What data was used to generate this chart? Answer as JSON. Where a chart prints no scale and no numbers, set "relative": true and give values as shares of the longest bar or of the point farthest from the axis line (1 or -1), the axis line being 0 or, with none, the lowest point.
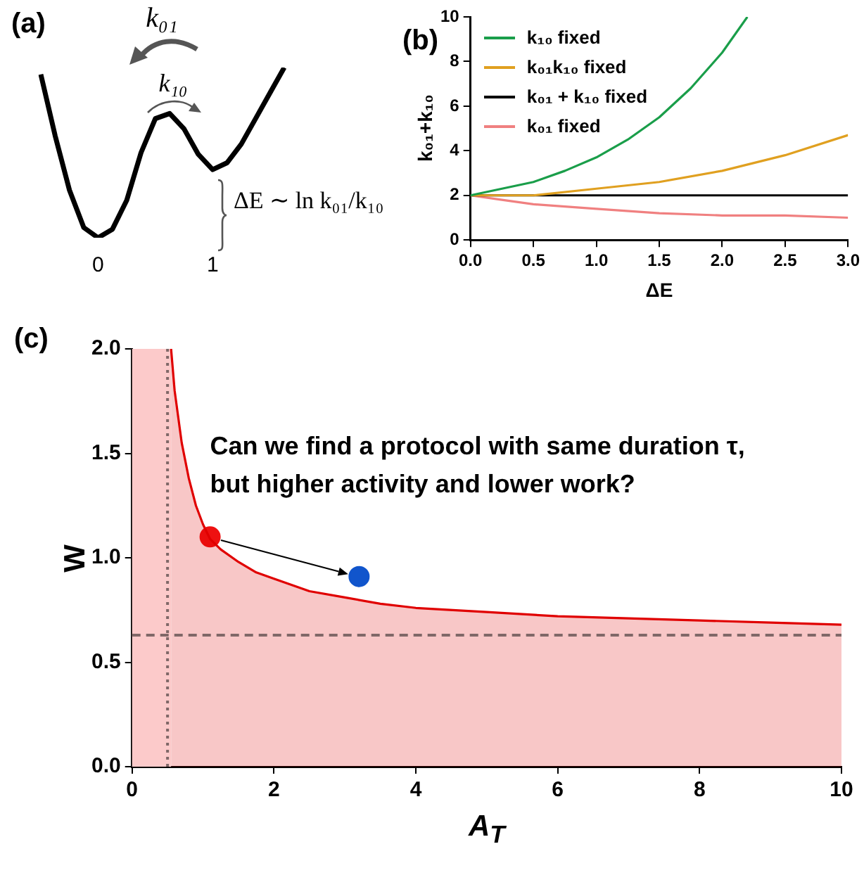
{
  "chart_data": [
    {
      "type": "line",
      "title": "(a)",
      "relative": true,
      "annotations": [
        "k₀₁",
        "k₁₀",
        "ΔE ∼ ln k₀₁/k₁₀"
      ],
      "categories": [
        null,
        null,
        null,
        null,
        "0",
        null,
        null,
        null,
        null,
        null,
        null,
        null,
        "1",
        null,
        null,
        null,
        null,
        null
      ],
      "series": [
        {
          "color": "#000000",
          "values": [
            0.96,
            0.6,
            0.28,
            0.06,
            0,
            0.05,
            0.22,
            0.5,
            0.7,
            0.73,
            0.64,
            0.49,
            0.4,
            0.44,
            0.55,
            0.7,
            0.85,
            1
          ]
        }
      ]
    },
    {
      "type": "line",
      "title": "(b)",
      "xlabel": "ΔE",
      "ylabel": "k₀₁+k₁₀",
      "xlim": [
        0,
        3
      ],
      "xticks": [
        {
          "value": 0,
          "label": "0.0"
        },
        {
          "value": 0.5,
          "label": "0.5"
        },
        {
          "value": 1,
          "label": "1.0"
        },
        {
          "value": 1.5,
          "label": "1.5"
        },
        {
          "value": 2,
          "label": "2.0"
        },
        {
          "value": 2.5,
          "label": "2.5"
        },
        {
          "value": 3,
          "label": "3.0"
        }
      ],
      "ylim": [
        0,
        10
      ],
      "yticks": [
        0,
        2,
        4,
        6,
        8,
        10
      ],
      "legend": "top left",
      "series": [
        {
          "name": "k₁₀ fixed",
          "color": "#1a9e4a",
          "x": [
            0,
            0.25,
            0.5,
            0.75,
            1,
            1.25,
            1.5,
            1.75,
            2,
            2.2
          ],
          "values": [
            2,
            2.3,
            2.6,
            3.1,
            3.7,
            4.5,
            5.5,
            6.8,
            8.4,
            10
          ]
        },
        {
          "name": "k₀₁k₁₀ fixed",
          "color": "#e0a020",
          "x": [
            0,
            0.5,
            1,
            1.5,
            2,
            2.5,
            3
          ],
          "values": [
            2,
            2.0,
            2.3,
            2.6,
            3.1,
            3.8,
            4.7
          ]
        },
        {
          "name": "k₀₁ + k₁₀ fixed",
          "color": "#000000",
          "x": [
            0,
            3
          ],
          "values": [
            2,
            2
          ]
        },
        {
          "name": "k₀₁ fixed",
          "color": "#f08080",
          "x": [
            0,
            0.25,
            0.5,
            0.75,
            1,
            1.5,
            2,
            2.5,
            3
          ],
          "values": [
            2,
            1.8,
            1.6,
            1.5,
            1.4,
            1.2,
            1.1,
            1.1,
            1.0
          ]
        }
      ]
    },
    {
      "type": "area",
      "title": "(c)",
      "xlabel": "A$_{T}$",
      "ylabel": "W",
      "xlim": [
        0,
        10
      ],
      "xticks": [
        0,
        2,
        4,
        6,
        8,
        10
      ],
      "ylim": [
        0,
        2
      ],
      "yticks": [
        {
          "value": 0,
          "label": "0.0"
        },
        {
          "value": 0.5,
          "label": "0.5"
        },
        {
          "value": 1,
          "label": "1.0"
        },
        {
          "value": 1.5,
          "label": "1.5"
        },
        {
          "value": 2,
          "label": "2.0"
        }
      ],
      "series": [
        {
          "color": "#e00000",
          "x": [
            0.55,
            0.6,
            0.7,
            0.8,
            0.9,
            1,
            1.1,
            1.25,
            1.5,
            1.75,
            2,
            2.5,
            3,
            3.5,
            4,
            5,
            6,
            7,
            8,
            9,
            10
          ],
          "values": [
            2,
            1.8,
            1.55,
            1.38,
            1.25,
            1.16,
            1.09,
            1.04,
            0.98,
            0.93,
            0.9,
            0.84,
            0.81,
            0.78,
            0.76,
            0.74,
            0.72,
            0.71,
            0.7,
            0.69,
            0.68
          ]
        },
        {
          "type": "scatter",
          "color": "#ee1111",
          "x": [
            1.1
          ],
          "values": [
            1.1
          ]
        },
        {
          "type": "scatter",
          "color": "#1155cc",
          "x": [
            3.2
          ],
          "values": [
            0.91
          ]
        }
      ],
      "bands": [
        {
          "axis": "x",
          "from": 0,
          "to": 0.55,
          "color": "#fccaca"
        }
      ],
      "ref_lines": [
        {
          "axis": "x",
          "value": 0.5,
          "color": "#806868",
          "line_style": "dotted"
        },
        {
          "axis": "y",
          "value": 0.63,
          "color": "#806868",
          "line_style": "dashed"
        }
      ],
      "annotations": [
        "Can we find a protocol with same duration τ,\nbut higher activity and lower work?"
      ]
    }
  ]
}
